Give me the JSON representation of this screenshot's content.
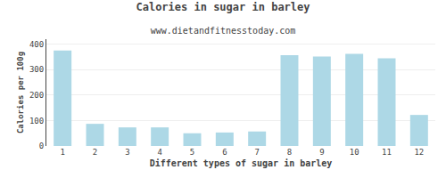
{
  "chart_data": {
    "type": "bar",
    "title": "Calories in sugar in barley",
    "subtitle": "www.dietandfitnesstoday.com",
    "xlabel": "Different types of sugar in barley",
    "ylabel": "Calories per 100g",
    "categories": [
      1,
      2,
      3,
      4,
      5,
      6,
      7,
      8,
      9,
      10,
      11,
      12
    ],
    "values": [
      375,
      87,
      73,
      73,
      50,
      53,
      57,
      357,
      352,
      362,
      345,
      122
    ],
    "color": "#add8e6",
    "ylim": [
      0,
      420
    ],
    "yticks": [
      0,
      100,
      200,
      300,
      400
    ],
    "grid": true
  }
}
